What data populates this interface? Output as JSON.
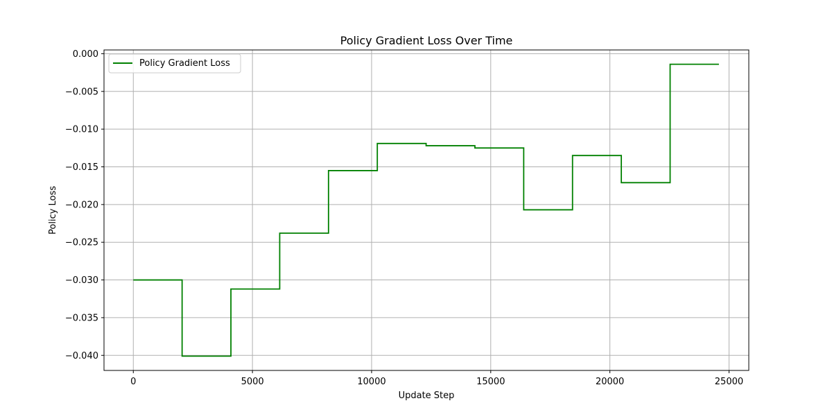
{
  "chart_data": {
    "type": "line",
    "step": true,
    "title": "Policy Gradient Loss Over Time",
    "xlabel": "Update Step",
    "ylabel": "Policy Loss",
    "xlim": [
      -1230,
      25830
    ],
    "ylim": [
      -0.042,
      0.0005
    ],
    "xticks": [
      0,
      5000,
      10000,
      15000,
      20000,
      25000
    ],
    "xtick_labels": [
      "0",
      "5000",
      "10000",
      "15000",
      "20000",
      "25000"
    ],
    "yticks": [
      0.0,
      -0.005,
      -0.01,
      -0.015,
      -0.02,
      -0.025,
      -0.03,
      -0.035,
      -0.04
    ],
    "ytick_labels": [
      "0.000",
      "−0.005",
      "−0.010",
      "−0.015",
      "−0.020",
      "−0.025",
      "−0.030",
      "−0.035",
      "−0.040"
    ],
    "grid": true,
    "legend_position": "top-left",
    "series": [
      {
        "name": "Policy Gradient Loss",
        "color": "#008000",
        "x": [
          0,
          2048,
          4096,
          6144,
          8192,
          10240,
          12288,
          14336,
          16384,
          18432,
          20480,
          22528,
          24576
        ],
        "y": [
          -0.03,
          -0.0401,
          -0.0312,
          -0.0238,
          -0.0155,
          -0.0119,
          -0.0122,
          -0.0125,
          -0.0207,
          -0.0135,
          -0.0171,
          -0.0014,
          -0.0014
        ]
      }
    ]
  }
}
